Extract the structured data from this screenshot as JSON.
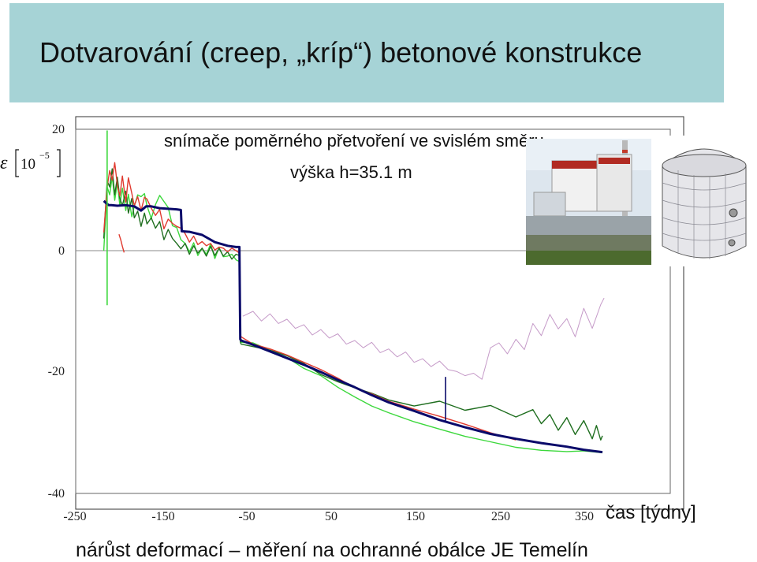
{
  "title": "Dotvarování (creep, „kríp“) betonové konstrukce",
  "footnote": "nárůst deformací – měření na ochranné obálce JE Temelín",
  "colors": {
    "banner": "#a6d3d6"
  },
  "images": {
    "photo": "power-plant-photo",
    "model": "containment-model"
  },
  "chart_data": {
    "type": "line",
    "annotations": [
      "snímače poměrného přetvoření ve svislém směru",
      "výška h=35.1 m"
    ],
    "xlabel": "čas [týdny]",
    "ylabel_symbol": "ε",
    "ylabel_bracket": "10",
    "ylabel_exponent": "−5",
    "xlim": [
      -250,
      400
    ],
    "ylim": [
      -40,
      20
    ],
    "xticks": [
      -250,
      -150,
      -50,
      50,
      150,
      250,
      350
    ],
    "yticks": [
      20,
      0,
      -20,
      -40
    ],
    "grid": false,
    "series": [
      {
        "color": "#0a0a6a",
        "width": 3,
        "x": [
          -216,
          -213,
          -210,
          -207,
          -200,
          -190,
          -180,
          -172,
          -166,
          -160,
          -150,
          -140,
          -130,
          -125,
          -124,
          -115,
          -100,
          -85,
          -70,
          -60,
          -56,
          -55,
          -54,
          -40,
          -20,
          0,
          20,
          40,
          60,
          80,
          100,
          120,
          150,
          180,
          210,
          240,
          270,
          300,
          330,
          350,
          372
        ],
        "y": [
          8.2,
          7.8,
          7.5,
          7.5,
          7.4,
          7.5,
          7.3,
          6.6,
          7.3,
          7.3,
          7.0,
          6.9,
          6.8,
          6.7,
          3.2,
          3.1,
          2.6,
          1.4,
          0.8,
          0.6,
          0.6,
          -14.6,
          -14.8,
          -15.5,
          -16.6,
          -17.7,
          -18.8,
          -20.0,
          -21.3,
          -22.5,
          -23.8,
          -25.0,
          -26.4,
          -27.9,
          -29.1,
          -30.2,
          -31.0,
          -31.7,
          -32.3,
          -32.8,
          -33.2
        ]
      },
      {
        "color": "#e03a2f",
        "width": 1.4,
        "x": [
          -216,
          -212,
          -209,
          -206,
          -203,
          -200,
          -197,
          -194,
          -190,
          -187,
          -183,
          -180,
          -176,
          -172,
          -168,
          -165,
          -160,
          -155,
          -150,
          -145,
          -140,
          -135,
          -130,
          -125,
          -120,
          -115,
          -110,
          -105,
          -100,
          -95,
          -90,
          -85,
          -80,
          -75,
          -70,
          -65,
          -60,
          -56,
          -55,
          -54,
          -40,
          -20,
          0,
          20,
          40,
          60,
          80,
          100,
          120,
          150,
          180,
          210,
          240,
          270
        ],
        "y": [
          3.0,
          10.5,
          13.2,
          11.6,
          14.5,
          10.8,
          9.0,
          12.3,
          8.0,
          12.0,
          9.5,
          7.4,
          8.9,
          6.6,
          8.8,
          8.5,
          7.0,
          5.8,
          6.8,
          3.6,
          5.2,
          4.5,
          4.0,
          3.7,
          2.8,
          1.4,
          2.4,
          1.0,
          1.5,
          0.8,
          1.2,
          0.1,
          0.6,
          0.4,
          -0.2,
          0.4,
          0.0,
          -0.4,
          -13.8,
          -14.2,
          -15.4,
          -16.2,
          -17.2,
          -18.4,
          -19.6,
          -21.0,
          -22.6,
          -23.6,
          -24.8,
          -26.1,
          -27.3,
          -28.6,
          -30.0,
          -31.2
        ]
      },
      {
        "color": "#1f6e1f",
        "width": 1.4,
        "x": [
          -216,
          -212,
          -209,
          -206,
          -203,
          -200,
          -197,
          -194,
          -190,
          -187,
          -183,
          -180,
          -176,
          -172,
          -168,
          -165,
          -160,
          -155,
          -150,
          -145,
          -140,
          -135,
          -130,
          -125,
          -120,
          -115,
          -110,
          -105,
          -100,
          -95,
          -90,
          -85,
          -80,
          -75,
          -70,
          -65,
          -60,
          -56,
          -55,
          -54,
          -40,
          -20,
          0,
          20,
          40,
          60,
          80,
          100,
          120,
          150,
          180,
          210,
          240,
          270,
          290,
          300,
          310,
          320,
          330,
          340,
          350,
          360,
          365,
          370,
          372
        ],
        "y": [
          2.0,
          11.5,
          10.5,
          13.5,
          9.2,
          12.1,
          8.6,
          7.4,
          9.8,
          6.2,
          8.6,
          5.4,
          6.5,
          4.0,
          6.2,
          4.4,
          5.4,
          3.7,
          4.8,
          1.8,
          3.5,
          2.0,
          1.2,
          0.3,
          1.2,
          -0.6,
          0.8,
          -0.4,
          0.4,
          -0.9,
          0.7,
          -0.8,
          0.4,
          -0.9,
          -0.2,
          -1.4,
          -0.6,
          -0.8,
          -15.0,
          -15.4,
          -15.8,
          -16.4,
          -17.3,
          -18.6,
          -20.4,
          -21.6,
          -22.6,
          -23.5,
          -24.6,
          -25.6,
          -24.8,
          -26.3,
          -25.5,
          -27.4,
          -26.2,
          -28.5,
          -27.0,
          -29.6,
          -27.5,
          -30.3,
          -28.0,
          -31.0,
          -28.8,
          -31.2,
          -30.5
        ]
      },
      {
        "color": "#3cd83c",
        "width": 1.4,
        "x": [
          -216,
          -212,
          -209,
          -206,
          -203,
          -200,
          -197,
          -194,
          -190,
          -187,
          -183,
          -180,
          -176,
          -172,
          -168,
          -165,
          -160,
          -155,
          -150,
          -145,
          -140,
          -135,
          -130,
          -125,
          -120,
          -115,
          -110,
          -105,
          -100,
          -95,
          -90,
          -85,
          -80,
          -75,
          -70,
          -65,
          -60,
          -56,
          -55,
          -54,
          -40,
          -20,
          0,
          20,
          40,
          60,
          80,
          100,
          120,
          150,
          180,
          210,
          240,
          270,
          300,
          330,
          350,
          372
        ],
        "y": [
          0.0,
          10.5,
          9.2,
          12.2,
          8.3,
          11.2,
          7.4,
          10.3,
          6.6,
          9.3,
          5.6,
          7.3,
          9.2,
          8.9,
          9.4,
          7.4,
          5.3,
          7.6,
          9.1,
          8.1,
          7.1,
          4.1,
          3.8,
          1.8,
          1.2,
          -0.2,
          1.3,
          -0.8,
          0.4,
          -0.6,
          1.1,
          -1.3,
          0.5,
          -1.0,
          -0.9,
          -0.6,
          -1.5,
          -1.8,
          -14.6,
          -15.1,
          -15.2,
          -16.4,
          -17.6,
          -19.4,
          -20.6,
          -22.5,
          -24.1,
          -25.6,
          -26.7,
          -28.2,
          -29.4,
          -30.6,
          -31.5,
          -32.4,
          -32.9,
          -33.1,
          -33.0,
          -33.3
        ]
      },
      {
        "color": "#c59ac8",
        "width": 1,
        "x": [
          -52,
          -40,
          -30,
          -20,
          -10,
          0,
          10,
          20,
          30,
          40,
          50,
          60,
          70,
          80,
          90,
          100,
          110,
          120,
          130,
          140,
          150,
          160,
          170,
          180,
          190,
          200,
          210,
          220,
          230,
          240,
          250,
          260,
          270,
          280,
          290,
          300,
          310,
          320,
          330,
          340,
          350,
          360,
          370,
          374
        ],
        "y": [
          -10.8,
          -10.0,
          -11.6,
          -10.4,
          -12.0,
          -11.3,
          -12.8,
          -12.2,
          -13.9,
          -13.0,
          -14.4,
          -13.7,
          -15.4,
          -14.8,
          -16.0,
          -15.1,
          -16.8,
          -16.2,
          -17.5,
          -16.7,
          -18.4,
          -17.8,
          -19.1,
          -18.2,
          -19.6,
          -19.9,
          -20.6,
          -20.2,
          -21.2,
          -16.0,
          -15.2,
          -17.0,
          -14.6,
          -16.3,
          -12.0,
          -14.0,
          -10.5,
          -12.9,
          -11.2,
          -14.2,
          -9.5,
          -12.8,
          -8.9,
          -7.8
        ]
      }
    ],
    "spikes": [
      {
        "color": "#3cd83c",
        "x": -212,
        "y": [
          -9.0,
          19.8
        ]
      },
      {
        "color": "#0a0a6a",
        "x": 187,
        "y": [
          -20.8,
          -28.0
        ]
      }
    ],
    "fragments": [
      {
        "color": "#e03a2f",
        "x": [
          -198,
          -196,
          -194,
          -192
        ],
        "y": [
          2.7,
          1.8,
          0.7,
          -0.3
        ]
      }
    ]
  }
}
